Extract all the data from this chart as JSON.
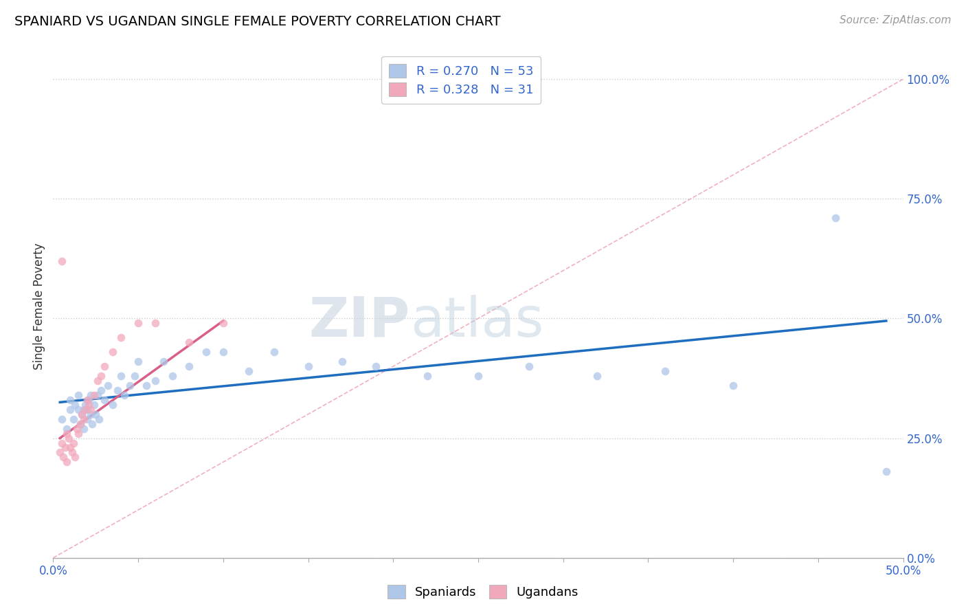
{
  "title": "SPANIARD VS UGANDAN SINGLE FEMALE POVERTY CORRELATION CHART",
  "source": "Source: ZipAtlas.com",
  "ylabel": "Single Female Poverty",
  "yticks": [
    "0.0%",
    "25.0%",
    "50.0%",
    "75.0%",
    "100.0%"
  ],
  "ytick_vals": [
    0.0,
    0.25,
    0.5,
    0.75,
    1.0
  ],
  "xlim": [
    0.0,
    0.5
  ],
  "ylim": [
    0.0,
    1.05
  ],
  "legend_r_spaniard": "R = 0.270",
  "legend_n_spaniard": "N = 53",
  "legend_r_ugandan": "R = 0.328",
  "legend_n_ugandan": "N = 31",
  "spaniard_color": "#aec6e8",
  "ugandan_color": "#f2a8bb",
  "spaniard_line_color": "#1f6dbf",
  "ugandan_line_color": "#d95f8a",
  "diagonal_color": "#f0b0c0",
  "watermark_zip": "ZIP",
  "watermark_atlas": "atlas",
  "spaniard_x": [
    0.005,
    0.008,
    0.01,
    0.01,
    0.012,
    0.013,
    0.015,
    0.015,
    0.016,
    0.017,
    0.018,
    0.018,
    0.019,
    0.02,
    0.02,
    0.021,
    0.022,
    0.022,
    0.023,
    0.024,
    0.025,
    0.026,
    0.027,
    0.028,
    0.03,
    0.032,
    0.035,
    0.038,
    0.04,
    0.042,
    0.045,
    0.048,
    0.05,
    0.055,
    0.06,
    0.065,
    0.07,
    0.08,
    0.09,
    0.1,
    0.115,
    0.13,
    0.15,
    0.17,
    0.19,
    0.22,
    0.25,
    0.28,
    0.32,
    0.36,
    0.4,
    0.46,
    0.49
  ],
  "spaniard_y": [
    0.29,
    0.27,
    0.31,
    0.33,
    0.29,
    0.32,
    0.31,
    0.34,
    0.28,
    0.3,
    0.27,
    0.31,
    0.32,
    0.29,
    0.31,
    0.33,
    0.3,
    0.34,
    0.28,
    0.32,
    0.3,
    0.34,
    0.29,
    0.35,
    0.33,
    0.36,
    0.32,
    0.35,
    0.38,
    0.34,
    0.36,
    0.38,
    0.41,
    0.36,
    0.37,
    0.41,
    0.38,
    0.4,
    0.43,
    0.43,
    0.39,
    0.43,
    0.4,
    0.41,
    0.4,
    0.38,
    0.38,
    0.4,
    0.38,
    0.39,
    0.36,
    0.71,
    0.18
  ],
  "ugandan_x": [
    0.004,
    0.005,
    0.006,
    0.007,
    0.008,
    0.008,
    0.009,
    0.01,
    0.011,
    0.012,
    0.013,
    0.014,
    0.015,
    0.016,
    0.017,
    0.018,
    0.019,
    0.02,
    0.021,
    0.022,
    0.024,
    0.026,
    0.028,
    0.03,
    0.035,
    0.04,
    0.05,
    0.06,
    0.08,
    0.1,
    0.005
  ],
  "ugandan_y": [
    0.22,
    0.24,
    0.21,
    0.23,
    0.26,
    0.2,
    0.25,
    0.23,
    0.22,
    0.24,
    0.21,
    0.27,
    0.26,
    0.28,
    0.3,
    0.29,
    0.31,
    0.33,
    0.32,
    0.31,
    0.34,
    0.37,
    0.38,
    0.4,
    0.43,
    0.46,
    0.49,
    0.49,
    0.45,
    0.49,
    0.62
  ],
  "spaniard_line_x0": 0.004,
  "spaniard_line_x1": 0.49,
  "spaniard_line_y0": 0.325,
  "spaniard_line_y1": 0.495,
  "ugandan_line_x0": 0.004,
  "ugandan_line_x1": 0.1,
  "ugandan_line_y0": 0.25,
  "ugandan_line_y1": 0.495
}
